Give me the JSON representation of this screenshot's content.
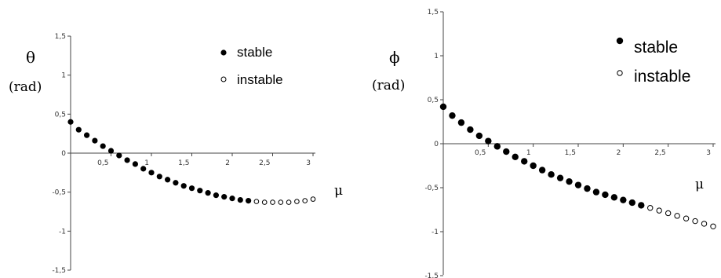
{
  "chart_data": [
    {
      "type": "scatter",
      "ylabel_symbol": "θ",
      "ylabel_unit": "(rad)",
      "xlabel": "μ",
      "xlim": [
        0,
        3
      ],
      "ylim": [
        -1.5,
        1.5
      ],
      "xticks": [
        "0,5",
        "1",
        "1,5",
        "2",
        "2,5",
        "3"
      ],
      "yticks": [
        "1,5",
        "1",
        "0,5",
        "0",
        "-0,5",
        "-1",
        "-1,5"
      ],
      "legend": {
        "placement": "top-right",
        "entries": [
          "stable",
          "instable"
        ]
      },
      "series": [
        {
          "name": "stable",
          "marker": "filled-circle",
          "x": [
            0.0,
            0.1,
            0.2,
            0.3,
            0.4,
            0.5,
            0.6,
            0.7,
            0.8,
            0.9,
            1.0,
            1.1,
            1.2,
            1.3,
            1.4,
            1.5,
            1.6,
            1.7,
            1.8,
            1.9,
            2.0,
            2.1,
            2.2
          ],
          "y": [
            0.4,
            0.3,
            0.23,
            0.16,
            0.09,
            0.03,
            -0.03,
            -0.09,
            -0.14,
            -0.2,
            -0.25,
            -0.3,
            -0.34,
            -0.38,
            -0.42,
            -0.45,
            -0.48,
            -0.51,
            -0.54,
            -0.56,
            -0.58,
            -0.6,
            -0.61
          ]
        },
        {
          "name": "instable",
          "marker": "open-circle",
          "x": [
            2.3,
            2.4,
            2.5,
            2.6,
            2.7,
            2.8,
            2.9,
            3.0
          ],
          "y": [
            -0.62,
            -0.63,
            -0.63,
            -0.63,
            -0.63,
            -0.62,
            -0.61,
            -0.59
          ]
        }
      ]
    },
    {
      "type": "scatter",
      "ylabel_symbol": "ϕ",
      "ylabel_unit": "(rad)",
      "xlabel": "μ",
      "xlim": [
        0,
        3
      ],
      "ylim": [
        -1.5,
        1.5
      ],
      "xticks": [
        "0,5",
        "1",
        "1,5",
        "2",
        "2,5",
        "3"
      ],
      "yticks": [
        "1,5",
        "1",
        "0,5",
        "0",
        "-0,5",
        "-1",
        "-1,5"
      ],
      "legend": {
        "placement": "top-right",
        "entries": [
          "stable",
          "instable"
        ]
      },
      "series": [
        {
          "name": "stable",
          "marker": "filled-circle",
          "x": [
            0.0,
            0.1,
            0.2,
            0.3,
            0.4,
            0.5,
            0.6,
            0.7,
            0.8,
            0.9,
            1.0,
            1.1,
            1.2,
            1.3,
            1.4,
            1.5,
            1.6,
            1.7,
            1.8,
            1.9,
            2.0,
            2.1,
            2.2
          ],
          "y": [
            0.42,
            0.32,
            0.24,
            0.16,
            0.09,
            0.03,
            -0.03,
            -0.09,
            -0.15,
            -0.2,
            -0.25,
            -0.3,
            -0.35,
            -0.39,
            -0.43,
            -0.47,
            -0.51,
            -0.55,
            -0.58,
            -0.61,
            -0.64,
            -0.67,
            -0.7
          ]
        },
        {
          "name": "instable",
          "marker": "open-circle",
          "x": [
            2.3,
            2.4,
            2.5,
            2.6,
            2.7,
            2.8,
            2.9,
            3.0
          ],
          "y": [
            -0.73,
            -0.76,
            -0.79,
            -0.82,
            -0.85,
            -0.88,
            -0.91,
            -0.94
          ]
        }
      ]
    }
  ]
}
